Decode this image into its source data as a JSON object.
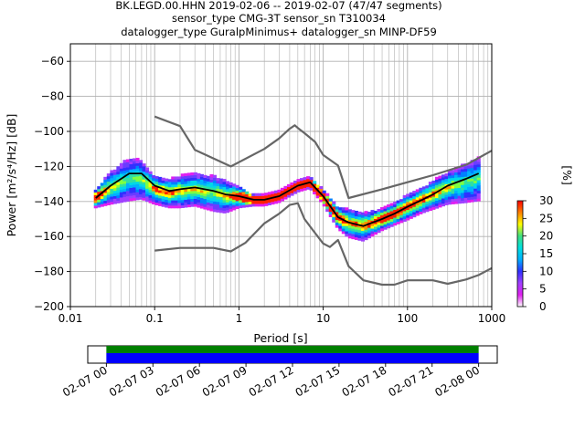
{
  "title_lines": [
    "BK.LEGD.00.HHN   2019-02-06 -- 2019-02-07  (47/47 segments)",
    "sensor_type CMG-3T sensor_sn T310034",
    "datalogger_type GuralpMinimus+ datalogger_sn MINP-DF59"
  ],
  "chart_data": [
    {
      "type": "heatmap",
      "xlabel": "Period [s]",
      "ylabel": "Power [m²/s⁴/Hz] [dB]",
      "xscale": "log",
      "xlim": [
        0.01,
        1000
      ],
      "ylim": [
        -200,
        -50
      ],
      "x_ticks": [
        0.01,
        0.1,
        1,
        10,
        100,
        1000
      ],
      "x_tick_labels": [
        "0.01",
        "0.1",
        "1",
        "10",
        "100",
        "1000"
      ],
      "y_ticks": [
        -200,
        -180,
        -160,
        -140,
        -120,
        -100,
        -80,
        -60
      ],
      "y_tick_labels": [
        "−200",
        "−180",
        "−160",
        "−140",
        "−120",
        "−100",
        "−80",
        "−60"
      ],
      "grid": true,
      "colorbar": {
        "label": "[%]",
        "range": [
          0,
          30
        ],
        "ticks": [
          0,
          5,
          10,
          15,
          20,
          25,
          30
        ],
        "tick_labels": [
          "0",
          "5",
          "10",
          "15",
          "20",
          "25",
          "30"
        ],
        "colors": [
          "#ffffff",
          "#e020f0",
          "#a040ff",
          "#3030ff",
          "#00b0ff",
          "#00e0e0",
          "#40e080",
          "#ffff00",
          "#ff8000",
          "#ff0000"
        ]
      },
      "density": {
        "period": [
          0.02,
          0.03,
          0.05,
          0.07,
          0.1,
          0.15,
          0.2,
          0.3,
          0.5,
          0.7,
          1,
          1.5,
          2,
          3,
          5,
          7,
          10,
          15,
          20,
          30,
          50,
          70,
          100,
          150,
          200,
          300,
          500,
          700
        ],
        "center_db": [
          -138,
          -132,
          -127,
          -127,
          -133,
          -135,
          -134,
          -133,
          -135,
          -137,
          -137,
          -139,
          -139,
          -137,
          -131,
          -129,
          -137,
          -149,
          -152,
          -154,
          -150,
          -147,
          -143,
          -139,
          -136,
          -132,
          -129,
          -127
        ],
        "spread_db": [
          5,
          9,
          12,
          11,
          8,
          8,
          9,
          9,
          10,
          9,
          6,
          3,
          3,
          3,
          3,
          3,
          4,
          6,
          8,
          8,
          6,
          6,
          7,
          7,
          8,
          9,
          11,
          12
        ]
      },
      "series": [
        {
          "period": [
            0.02,
            0.03,
            0.05,
            0.07,
            0.1,
            0.15,
            0.2,
            0.3,
            0.5,
            0.7,
            1,
            1.5,
            2,
            3,
            5,
            7,
            10,
            15,
            20,
            30,
            50,
            70,
            100,
            150,
            200,
            300,
            500,
            700
          ],
          "db": [
            -138,
            -131,
            -124,
            -124,
            -131,
            -134,
            -133,
            -132,
            -134,
            -136,
            -137,
            -139,
            -139,
            -137,
            -131,
            -129,
            -137,
            -149,
            -152,
            -154,
            -150,
            -147,
            -143,
            -139,
            -136,
            -131,
            -127,
            -124
          ],
          "color": "#000000"
        },
        {
          "period": [
            0.1,
            0.2,
            0.3,
            0.8,
            2,
            3,
            4,
            4.6,
            5,
            6,
            8,
            10,
            15,
            20,
            50,
            100,
            200,
            500,
            1000
          ],
          "db": [
            -91.5,
            -97,
            -110.5,
            -120,
            -110,
            -104,
            -98.5,
            -96.5,
            -98,
            -101,
            -106,
            -113.5,
            -119.5,
            -138,
            -133,
            -129,
            -125,
            -119,
            -111
          ],
          "color": "#666666"
        },
        {
          "period": [
            0.1,
            0.2,
            0.5,
            0.8,
            1.2,
            2,
            3,
            4,
            5,
            6,
            8,
            10,
            12,
            15,
            20,
            30,
            50,
            70,
            100,
            200,
            300,
            500,
            700,
            1000
          ],
          "db": [
            -168,
            -166.5,
            -166.5,
            -168.5,
            -163.5,
            -152.5,
            -147,
            -142,
            -141,
            -150,
            -158,
            -164,
            -166,
            -162,
            -177,
            -185,
            -187.5,
            -187.5,
            -185,
            -185,
            -187,
            -184.5,
            -182,
            -178
          ],
          "color": "#666666"
        }
      ]
    },
    {
      "type": "timeline",
      "x_tick_labels": [
        "02-07 00",
        "02-07 03",
        "02-07 06",
        "02-07 09",
        "02-07 12",
        "02-07 15",
        "02-07 18",
        "02-07 21",
        "02-08 00"
      ],
      "data_span_hours": [
        0,
        24
      ],
      "axis_span_hours": [
        -1.2,
        25.2
      ],
      "colors": {
        "data": "#0000ff",
        "gaps": "#008000"
      }
    }
  ]
}
